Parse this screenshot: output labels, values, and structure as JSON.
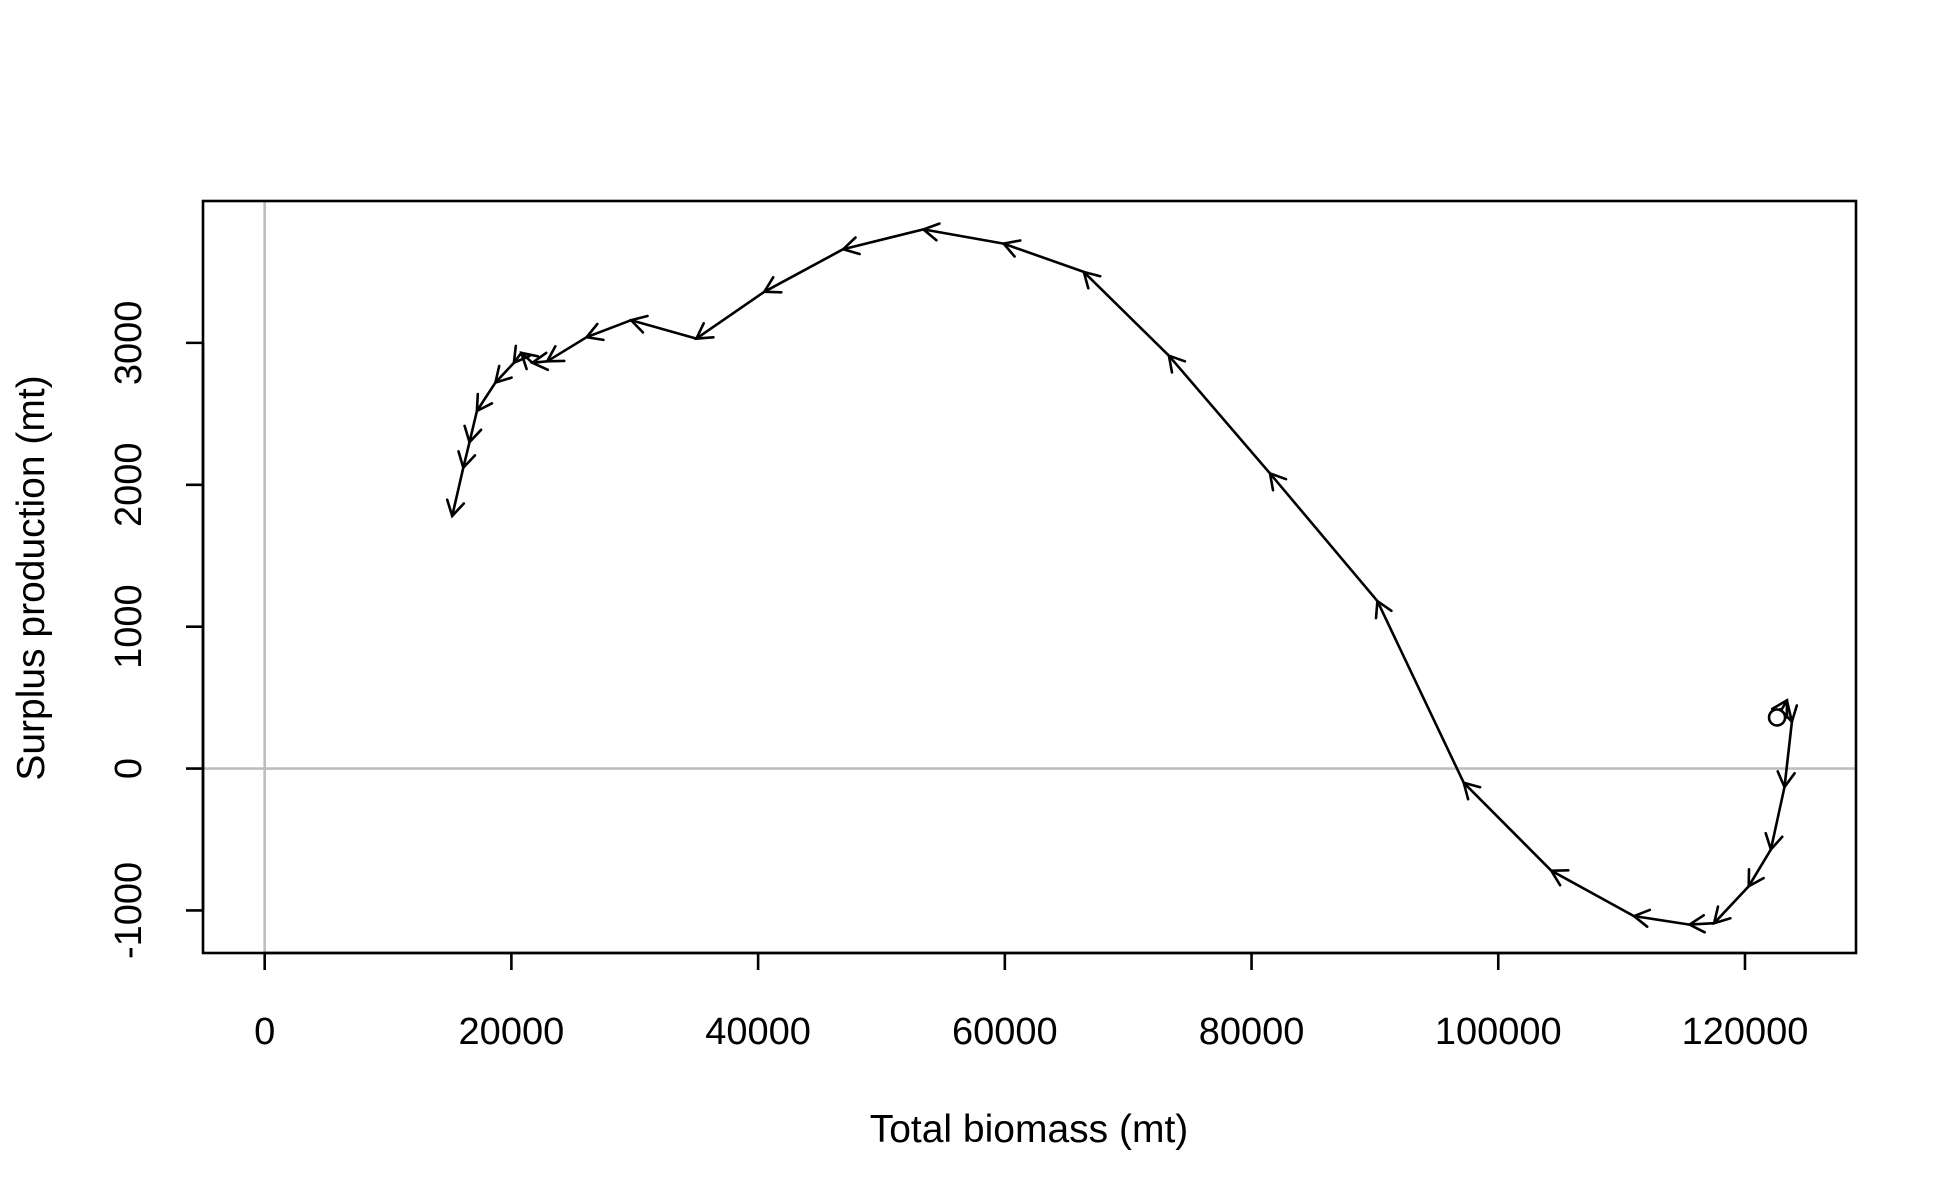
{
  "chart_data": {
    "type": "line",
    "title": "",
    "xlabel": "Total biomass (mt)",
    "ylabel": "Surplus production (mt)",
    "xlim": [
      -5000,
      129000
    ],
    "ylim": [
      -1300,
      4000
    ],
    "xticks": [
      0,
      20000,
      40000,
      60000,
      80000,
      100000,
      120000
    ],
    "xtick_labels": [
      "0",
      "20000",
      "40000",
      "60000",
      "80000",
      "100000",
      "120000"
    ],
    "yticks": [
      -1000,
      0,
      1000,
      2000,
      3000
    ],
    "ytick_labels": [
      "-1000",
      "0",
      "1000",
      "2000",
      "3000"
    ],
    "reference_lines": {
      "x": 0,
      "y": 0,
      "color": "#bebebe"
    },
    "grid": false,
    "legend": "none",
    "line_color": "#000000",
    "start_marker": "open circle",
    "series": [
      {
        "x": [
          122600,
          123400,
          123800,
          123200,
          122100,
          120300,
          117500,
          115500,
          111000,
          104300,
          97200,
          90200,
          81500,
          73300,
          66400,
          59900,
          53400,
          46900,
          40500,
          35000,
          29700,
          26100,
          22900,
          21700,
          20800,
          20200,
          18700,
          17200,
          16600,
          16100,
          15200
        ],
        "y": [
          360,
          480,
          330,
          -130,
          -570,
          -830,
          -1090,
          -1100,
          -1040,
          -720,
          -100,
          1180,
          2080,
          2910,
          3500,
          3700,
          3800,
          3660,
          3360,
          3030,
          3160,
          3040,
          2870,
          2860,
          2930,
          2860,
          2720,
          2520,
          2300,
          2120,
          1780
        ]
      }
    ]
  }
}
